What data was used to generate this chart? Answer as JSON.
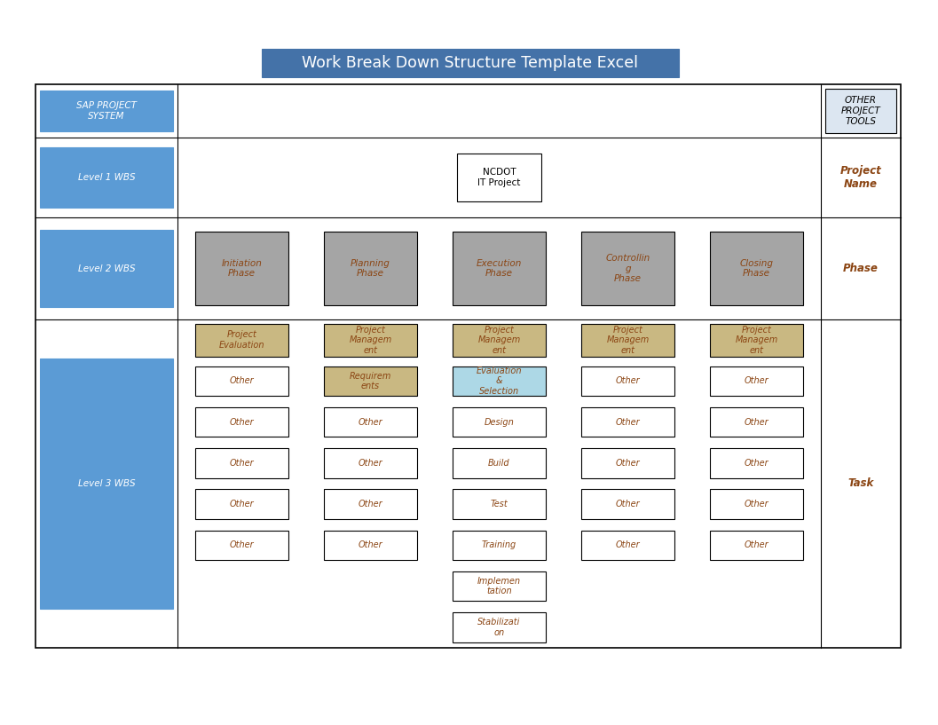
{
  "title": "Work Break Down Structure Template Excel",
  "title_bg": "#4472a8",
  "title_fg": "#ffffff",
  "left_labels": [
    {
      "text": "SAP PROJECT\nSYSTEM",
      "row": 0,
      "bg": "#5b9bd5",
      "fg": "#ffffff"
    },
    {
      "text": "Level 1 WBS",
      "row": 1,
      "bg": "#5b9bd5",
      "fg": "#ffffff"
    },
    {
      "text": "Level 2 WBS",
      "row": 2,
      "bg": "#5b9bd5",
      "fg": "#ffffff"
    },
    {
      "text": "Level 3 WBS",
      "row": 3,
      "bg": "#5b9bd5",
      "fg": "#ffffff"
    }
  ],
  "right_labels": [
    {
      "text": "OTHER\nPROJECT\nTOOLS",
      "row": 0,
      "bg": "#dce6f1",
      "fg": "#000000",
      "border": true
    },
    {
      "text": "Project\nName",
      "row": 1,
      "bg": "#ffffff",
      "fg": "#8b4513",
      "border": false
    },
    {
      "text": "Phase",
      "row": 2,
      "bg": "#ffffff",
      "fg": "#8b4513",
      "border": false
    },
    {
      "text": "Task",
      "row": 3,
      "bg": "#ffffff",
      "fg": "#8b4513",
      "border": false
    }
  ],
  "level2_boxes": [
    {
      "text": "Initiation\nPhase",
      "bg": "#a5a5a5",
      "fg": "#8b4513"
    },
    {
      "text": "Planning\nPhase",
      "bg": "#a5a5a5",
      "fg": "#8b4513"
    },
    {
      "text": "Execution\nPhase",
      "bg": "#a5a5a5",
      "fg": "#8b4513"
    },
    {
      "text": "Controllin\ng\nPhase",
      "bg": "#a5a5a5",
      "fg": "#8b4513"
    },
    {
      "text": "Closing\nPhase",
      "bg": "#a5a5a5",
      "fg": "#8b4513"
    }
  ],
  "level3_rows": [
    [
      {
        "text": "Project\nEvaluation",
        "bg": "#c9b882",
        "fg": "#8b4513"
      },
      {
        "text": "Project\nManagem\nent",
        "bg": "#c9b882",
        "fg": "#8b4513"
      },
      {
        "text": "Project\nManagem\nent",
        "bg": "#c9b882",
        "fg": "#8b4513"
      },
      {
        "text": "Project\nManagem\nent",
        "bg": "#c9b882",
        "fg": "#8b4513"
      },
      {
        "text": "Project\nManagem\nent",
        "bg": "#c9b882",
        "fg": "#8b4513"
      }
    ],
    [
      {
        "text": "Other",
        "bg": "#ffffff",
        "fg": "#8b4513"
      },
      {
        "text": "Requirem\nents",
        "bg": "#c9b882",
        "fg": "#8b4513"
      },
      {
        "text": "Evaluation\n&\nSelection",
        "bg": "#add8e6",
        "fg": "#8b4513"
      },
      {
        "text": "Other",
        "bg": "#ffffff",
        "fg": "#8b4513"
      },
      {
        "text": "Other",
        "bg": "#ffffff",
        "fg": "#8b4513"
      }
    ],
    [
      {
        "text": "Other",
        "bg": "#ffffff",
        "fg": "#8b4513"
      },
      {
        "text": "Other",
        "bg": "#ffffff",
        "fg": "#8b4513"
      },
      {
        "text": "Design",
        "bg": "#ffffff",
        "fg": "#8b4513"
      },
      {
        "text": "Other",
        "bg": "#ffffff",
        "fg": "#8b4513"
      },
      {
        "text": "Other",
        "bg": "#ffffff",
        "fg": "#8b4513"
      }
    ],
    [
      {
        "text": "Other",
        "bg": "#ffffff",
        "fg": "#8b4513"
      },
      {
        "text": "Other",
        "bg": "#ffffff",
        "fg": "#8b4513"
      },
      {
        "text": "Build",
        "bg": "#ffffff",
        "fg": "#8b4513"
      },
      {
        "text": "Other",
        "bg": "#ffffff",
        "fg": "#8b4513"
      },
      {
        "text": "Other",
        "bg": "#ffffff",
        "fg": "#8b4513"
      }
    ],
    [
      {
        "text": "Other",
        "bg": "#ffffff",
        "fg": "#8b4513"
      },
      {
        "text": "Other",
        "bg": "#ffffff",
        "fg": "#8b4513"
      },
      {
        "text": "Test",
        "bg": "#ffffff",
        "fg": "#8b4513"
      },
      {
        "text": "Other",
        "bg": "#ffffff",
        "fg": "#8b4513"
      },
      {
        "text": "Other",
        "bg": "#ffffff",
        "fg": "#8b4513"
      }
    ],
    [
      {
        "text": "Other",
        "bg": "#ffffff",
        "fg": "#8b4513"
      },
      {
        "text": "Other",
        "bg": "#ffffff",
        "fg": "#8b4513"
      },
      {
        "text": "Training",
        "bg": "#ffffff",
        "fg": "#8b4513"
      },
      {
        "text": "Other",
        "bg": "#ffffff",
        "fg": "#8b4513"
      },
      {
        "text": "Other",
        "bg": "#ffffff",
        "fg": "#8b4513"
      }
    ],
    [
      null,
      null,
      {
        "text": "Implemen\ntation",
        "bg": "#ffffff",
        "fg": "#8b4513"
      },
      null,
      null
    ],
    [
      null,
      null,
      {
        "text": "Stabilizati\non",
        "bg": "#ffffff",
        "fg": "#8b4513"
      },
      null,
      null
    ]
  ],
  "bg_color": "#ffffff"
}
